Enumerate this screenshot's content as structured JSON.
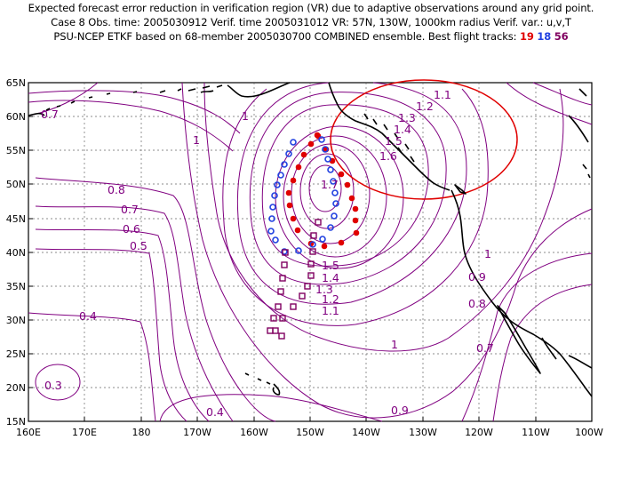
{
  "header": {
    "line1": "Expected forecast error reduction in verification region (VR) due to adaptive observations around any grid point.",
    "line2": "Case 8   Obs. time: 2005030912   Verif. time 2005031012   VR: 57N, 130W, 1000km radius   Verif. var.: u,v,T",
    "line3_prefix": "PSU-NCEP ETKF based on 68-member 2005030700 COMBINED ensemble.  Best flight tracks: ",
    "track_a": "19",
    "track_b": "18",
    "track_c": "56"
  },
  "axes": {
    "lat_labels": [
      "65N",
      "60N",
      "55N",
      "50N",
      "45N",
      "40N",
      "35N",
      "30N",
      "25N",
      "20N",
      "15N"
    ],
    "lon_labels": [
      "160E",
      "170E",
      "180",
      "170W",
      "160W",
      "150W",
      "140W",
      "130W",
      "120W",
      "110W",
      "100W"
    ]
  },
  "contour_labels": {
    "c11a": "1.1",
    "c12a": "1.2",
    "c13a": "1.3",
    "c14a": "1.4",
    "c15a": "1.5",
    "c16a": "1.6",
    "c17": "1.7",
    "c1a": "1",
    "c1b": "1",
    "c1c": "1",
    "c1d": "1",
    "c07a": "0.7",
    "c07b": "0.7",
    "c07c": "0.7",
    "c08a": "0.8",
    "c08b": "0.8",
    "c06": "0.6",
    "c05": "0.5",
    "c04a": "0.4",
    "c04b": "0.4",
    "c03": "0.3",
    "c09a": "0.9",
    "c09b": "0.9",
    "c15b": "1.5",
    "c14b": "1.4",
    "c13b": "1.3",
    "c12b": "1.2",
    "c11b": "1.1"
  },
  "colors": {
    "contour": "#800080",
    "verification_circle": "#e00000",
    "track_19": "#e00000",
    "track_18": "#2040e0",
    "track_56": "#800060",
    "coast": "#000000"
  }
}
